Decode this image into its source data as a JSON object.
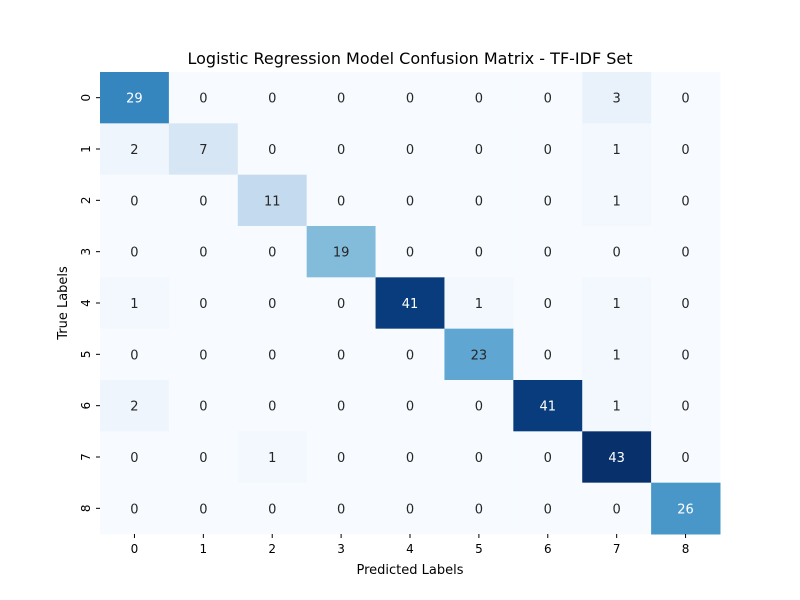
{
  "chart_data": {
    "type": "heatmap",
    "title": "Logistic Regression Model Confusion Matrix - TF-IDF Set",
    "xlabel": "Predicted Labels",
    "ylabel": "True Labels",
    "x_ticks": [
      "0",
      "1",
      "2",
      "3",
      "4",
      "5",
      "6",
      "7",
      "8"
    ],
    "y_ticks": [
      "0",
      "1",
      "2",
      "3",
      "4",
      "5",
      "6",
      "7",
      "8"
    ],
    "matrix": [
      [
        29,
        0,
        0,
        0,
        0,
        0,
        0,
        3,
        0
      ],
      [
        2,
        7,
        0,
        0,
        0,
        0,
        0,
        1,
        0
      ],
      [
        0,
        0,
        11,
        0,
        0,
        0,
        0,
        1,
        0
      ],
      [
        0,
        0,
        0,
        19,
        0,
        0,
        0,
        0,
        0
      ],
      [
        1,
        0,
        0,
        0,
        41,
        1,
        0,
        1,
        0
      ],
      [
        0,
        0,
        0,
        0,
        0,
        23,
        0,
        1,
        0
      ],
      [
        2,
        0,
        0,
        0,
        0,
        0,
        41,
        1,
        0
      ],
      [
        0,
        0,
        1,
        0,
        0,
        0,
        0,
        43,
        0
      ],
      [
        0,
        0,
        0,
        0,
        0,
        0,
        0,
        0,
        26
      ]
    ],
    "colormap": "Blues",
    "value_range": [
      0,
      43
    ],
    "colorbar": false,
    "grid": false
  }
}
